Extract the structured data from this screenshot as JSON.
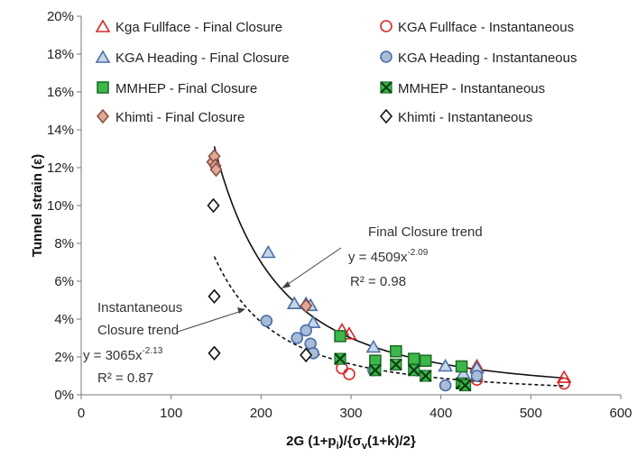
{
  "chart_data": {
    "type": "scatter",
    "xlabel": "2G (1+p",
    "xlabel_sub": "i",
    "xlabel_mid": ")/{σ",
    "xlabel_sub2": "v",
    "xlabel_end": "(1+k)/2}",
    "ylabel": "Tunnel strain (ε)",
    "xlim": [
      0,
      600
    ],
    "ylim": [
      0,
      20
    ],
    "x_ticks": [
      "0",
      "100",
      "200",
      "300",
      "400",
      "500",
      "600"
    ],
    "y_ticks": [
      "0%",
      "2%",
      "4%",
      "6%",
      "8%",
      "10%",
      "12%",
      "14%",
      "16%",
      "18%",
      "20%"
    ],
    "series": [
      {
        "name": "Kga Fullface - Final Closure",
        "marker": "triangle",
        "stroke": "#d62728",
        "fill": "none",
        "x": [
          290,
          298,
          440,
          537
        ],
        "y": [
          3.4,
          3.2,
          1.5,
          0.9
        ]
      },
      {
        "name": "KGA Fullface - Instantaneous",
        "marker": "circle",
        "stroke": "#d62728",
        "fill": "none",
        "x": [
          290,
          298,
          440,
          537
        ],
        "y": [
          1.4,
          1.1,
          0.8,
          0.6
        ]
      },
      {
        "name": "KGA Heading - Final Closure",
        "marker": "triangle",
        "stroke": "#4a6fa5",
        "fill": "#c9d6ea",
        "x": [
          208,
          237,
          250,
          255,
          258,
          325,
          405,
          425,
          440
        ],
        "y": [
          7.5,
          4.8,
          4.8,
          4.7,
          3.8,
          2.5,
          1.5,
          1.1,
          1.4
        ]
      },
      {
        "name": "KGA Heading - Instantaneous",
        "marker": "circle",
        "stroke": "#4a6fa5",
        "fill": "#a9bcd8",
        "x": [
          206,
          240,
          250,
          255,
          258,
          325,
          405,
          425,
          440
        ],
        "y": [
          3.9,
          3.0,
          3.4,
          2.7,
          2.2,
          1.3,
          0.5,
          0.6,
          1.0
        ]
      },
      {
        "name": "MMHEP - Final Closure",
        "marker": "square",
        "stroke": "#1f6f2a",
        "fill": "#3cb84a",
        "x": [
          288,
          327,
          350,
          370,
          383,
          423
        ],
        "y": [
          3.1,
          1.8,
          2.3,
          1.9,
          1.8,
          1.5
        ]
      },
      {
        "name": "MMHEP - Instantaneous",
        "marker": "xsquare",
        "stroke": "#1f6f2a",
        "fill": "#3cb84a",
        "x": [
          288,
          327,
          350,
          370,
          383,
          423,
          427
        ],
        "y": [
          1.9,
          1.3,
          1.6,
          1.3,
          1.0,
          0.6,
          0.5
        ]
      },
      {
        "name": "Khimti - Final Closure",
        "marker": "diamond",
        "stroke": "#8a4f44",
        "fill": "#e0a896",
        "x": [
          146,
          148,
          149,
          150,
          250
        ],
        "y": [
          12.3,
          12.6,
          12.1,
          11.9,
          4.7
        ]
      },
      {
        "name": "Khimti - Instantaneous",
        "marker": "diamond",
        "stroke": "#111111",
        "fill": "#ffffff",
        "x": [
          147,
          148,
          148,
          250
        ],
        "y": [
          10.0,
          5.2,
          2.2,
          2.1
        ]
      }
    ],
    "trendlines": [
      {
        "label": "Final Closure trend",
        "a": 4509,
        "b": -2.09,
        "equation_base": "y = 4509x",
        "exponent": "-2.09",
        "r2": "R² = 0.98",
        "style": "solid",
        "xrange": [
          148,
          537
        ]
      },
      {
        "label_line1": "Instantaneous",
        "label_line2": "Closure trend",
        "a": 3065,
        "b": -2.13,
        "equation_base": "y = 3065x",
        "exponent": "-2.13",
        "r2": "R² = 0.87",
        "style": "dashed",
        "xrange": [
          148,
          537
        ]
      }
    ],
    "legend_placement": "top",
    "grid": false
  }
}
